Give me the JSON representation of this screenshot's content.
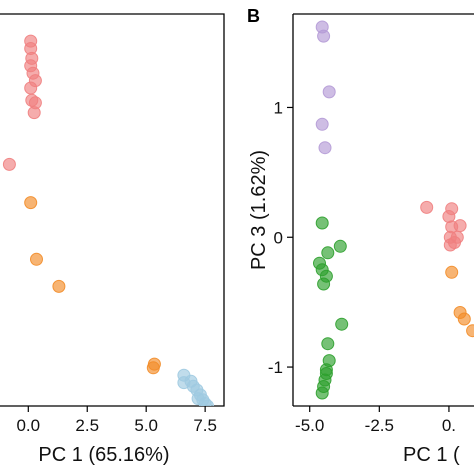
{
  "colors": {
    "red": "#f08080",
    "orange": "#f28c28",
    "blue": "#9ecae1",
    "purple": "#b49ad6",
    "green": "#2ca02c"
  },
  "chart_data": [
    {
      "type": "scatter",
      "panel": "",
      "title": "",
      "xlabel": "PC 1 (65.16%)",
      "ylabel": "",
      "xlim": [
        -1.2,
        8.3
      ],
      "ylim": [
        -6.3,
        9.6
      ],
      "x_ticks": [
        0,
        2.5,
        5.0,
        7.5
      ],
      "x_tick_labels": [
        "0.0",
        "2.5",
        "5.0",
        "7.5"
      ],
      "grid": false,
      "series": [
        {
          "color": "red",
          "points": [
            {
              "x": 0.1,
              "y": 8.5
            },
            {
              "x": 0.1,
              "y": 8.2
            },
            {
              "x": 0.15,
              "y": 7.8
            },
            {
              "x": 0.1,
              "y": 7.5
            },
            {
              "x": 0.2,
              "y": 7.2
            },
            {
              "x": 0.3,
              "y": 6.9
            },
            {
              "x": 0.1,
              "y": 6.6
            },
            {
              "x": 0.15,
              "y": 6.1
            },
            {
              "x": 0.25,
              "y": 5.6
            },
            {
              "x": 0.3,
              "y": 6.0
            },
            {
              "x": -0.8,
              "y": 3.5
            }
          ]
        },
        {
          "color": "orange",
          "points": [
            {
              "x": 0.1,
              "y": 1.95
            },
            {
              "x": 0.35,
              "y": -0.35
            },
            {
              "x": 1.3,
              "y": -1.45
            },
            {
              "x": 5.35,
              "y": -4.6
            },
            {
              "x": 5.3,
              "y": -4.75
            }
          ]
        },
        {
          "color": "blue",
          "points": [
            {
              "x": 6.6,
              "y": -5.05
            },
            {
              "x": 6.9,
              "y": -5.3
            },
            {
              "x": 7.0,
              "y": -5.5
            },
            {
              "x": 6.6,
              "y": -5.35
            },
            {
              "x": 7.15,
              "y": -5.65
            },
            {
              "x": 7.3,
              "y": -5.85
            },
            {
              "x": 7.4,
              "y": -6.05
            },
            {
              "x": 7.5,
              "y": -6.2
            },
            {
              "x": 7.6,
              "y": -6.3
            },
            {
              "x": 7.2,
              "y": -6.0
            }
          ]
        }
      ]
    },
    {
      "type": "scatter",
      "panel": "B",
      "title": "",
      "xlabel": "PC 1 (",
      "ylabel": "PC 3 (1.62%)",
      "xlim": [
        -5.6,
        0.9
      ],
      "ylim": [
        -1.3,
        1.72
      ],
      "x_ticks": [
        -5.0,
        -2.5,
        0
      ],
      "x_tick_labels": [
        "-5.0",
        "-2.5",
        "0."
      ],
      "y_ticks": [
        1,
        0,
        -1
      ],
      "y_tick_labels": [
        "1",
        "0",
        "-1"
      ],
      "grid": false,
      "series": [
        {
          "color": "purple",
          "points": [
            {
              "x": -4.55,
              "y": 1.62
            },
            {
              "x": -4.5,
              "y": 1.55
            },
            {
              "x": -4.3,
              "y": 1.12
            },
            {
              "x": -4.55,
              "y": 0.87
            },
            {
              "x": -4.45,
              "y": 0.69
            }
          ]
        },
        {
          "color": "green",
          "points": [
            {
              "x": -4.55,
              "y": 0.11
            },
            {
              "x": -3.9,
              "y": -0.07
            },
            {
              "x": -4.35,
              "y": -0.12
            },
            {
              "x": -4.65,
              "y": -0.2
            },
            {
              "x": -4.55,
              "y": -0.25
            },
            {
              "x": -4.4,
              "y": -0.3
            },
            {
              "x": -4.5,
              "y": -0.36
            },
            {
              "x": -3.85,
              "y": -0.67
            },
            {
              "x": -4.35,
              "y": -0.82
            },
            {
              "x": -4.3,
              "y": -0.95
            },
            {
              "x": -4.4,
              "y": -1.02
            },
            {
              "x": -4.45,
              "y": -1.1
            },
            {
              "x": -4.5,
              "y": -1.15
            },
            {
              "x": -4.55,
              "y": -1.2
            },
            {
              "x": -4.4,
              "y": -1.05
            }
          ]
        },
        {
          "color": "red",
          "points": [
            {
              "x": -0.8,
              "y": 0.23
            },
            {
              "x": 0.0,
              "y": 0.16
            },
            {
              "x": 0.1,
              "y": 0.22
            },
            {
              "x": 0.1,
              "y": 0.08
            },
            {
              "x": 0.4,
              "y": 0.09
            },
            {
              "x": 0.05,
              "y": 0.0
            },
            {
              "x": 0.2,
              "y": -0.04
            },
            {
              "x": 0.3,
              "y": 0.0
            },
            {
              "x": 0.05,
              "y": -0.06
            }
          ]
        },
        {
          "color": "orange",
          "points": [
            {
              "x": 0.1,
              "y": -0.27
            },
            {
              "x": 0.4,
              "y": -0.58
            },
            {
              "x": 0.55,
              "y": -0.63
            },
            {
              "x": 0.85,
              "y": -0.72
            }
          ]
        }
      ]
    }
  ]
}
